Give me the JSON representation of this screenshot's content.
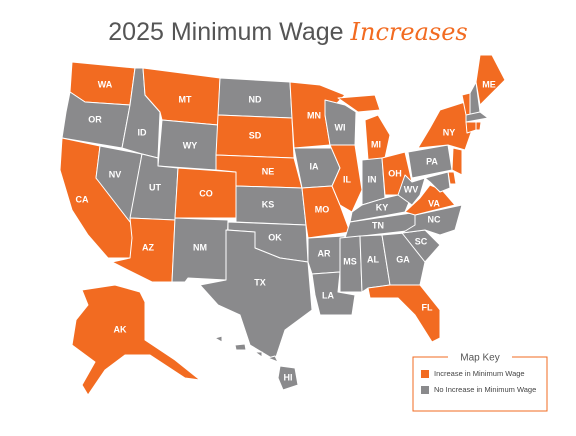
{
  "title": {
    "text": "2025 Minimum Wage",
    "highlight": "Increases"
  },
  "legend": {
    "title": "Map Key",
    "items": [
      {
        "label": "Increase in Minimum Wage",
        "color": "#f26b21"
      },
      {
        "label": "No Increase in Minimum Wage",
        "color": "#8a8a8c"
      }
    ]
  },
  "states": [
    {
      "label": "WA",
      "increase": true
    },
    {
      "label": "OR",
      "increase": false
    },
    {
      "label": "CA",
      "increase": true
    },
    {
      "label": "NV",
      "increase": false
    },
    {
      "label": "ID",
      "increase": false
    },
    {
      "label": "MT",
      "increase": true
    },
    {
      "label": "WY",
      "increase": false
    },
    {
      "label": "UT",
      "increase": false
    },
    {
      "label": "AZ",
      "increase": true
    },
    {
      "label": "CO",
      "increase": true
    },
    {
      "label": "NM",
      "increase": false
    },
    {
      "label": "ND",
      "increase": false
    },
    {
      "label": "SD",
      "increase": true
    },
    {
      "label": "NE",
      "increase": true
    },
    {
      "label": "KS",
      "increase": false
    },
    {
      "label": "OK",
      "increase": false
    },
    {
      "label": "TX",
      "increase": false
    },
    {
      "label": "MN",
      "increase": true
    },
    {
      "label": "IA",
      "increase": false
    },
    {
      "label": "MO",
      "increase": true
    },
    {
      "label": "AR",
      "increase": false
    },
    {
      "label": "LA",
      "increase": false
    },
    {
      "label": "WI",
      "increase": false
    },
    {
      "label": "IL",
      "increase": true
    },
    {
      "label": "MI",
      "increase": true
    },
    {
      "label": "IN",
      "increase": false
    },
    {
      "label": "OH",
      "increase": true
    },
    {
      "label": "KY",
      "increase": false
    },
    {
      "label": "TN",
      "increase": false
    },
    {
      "label": "MS",
      "increase": false
    },
    {
      "label": "AL",
      "increase": false
    },
    {
      "label": "GA",
      "increase": false
    },
    {
      "label": "FL",
      "increase": true
    },
    {
      "label": "SC",
      "increase": false
    },
    {
      "label": "NC",
      "increase": false
    },
    {
      "label": "VA",
      "increase": true
    },
    {
      "label": "WV",
      "increase": false
    },
    {
      "label": "PA",
      "increase": false
    },
    {
      "label": "NY",
      "increase": true
    },
    {
      "increase": true
    },
    {
      "increase": false
    },
    {
      "label": "ME",
      "increase": true
    },
    {
      "increase": false
    },
    {
      "increase": true
    },
    {
      "increase": true
    },
    {
      "increase": true
    },
    {
      "increase": true
    },
    {
      "increase": false
    },
    {
      "label": "AK",
      "increase": true
    },
    {
      "label": "HI",
      "increase": false
    }
  ]
}
